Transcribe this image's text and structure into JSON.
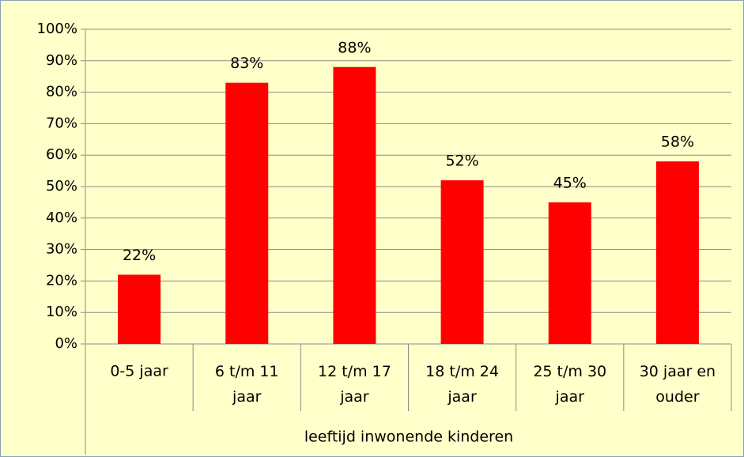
{
  "chart_data": {
    "type": "bar",
    "categories": [
      "0-5 jaar",
      "6 t/m 11 jaar",
      "12 t/m 17 jaar",
      "18 t/m 24 jaar",
      "25 t/m 30 jaar",
      "30 jaar en ouder"
    ],
    "values": [
      22,
      83,
      88,
      52,
      45,
      58
    ],
    "value_labels": [
      "22%",
      "83%",
      "88%",
      "52%",
      "45%",
      "58%"
    ],
    "color": "#ff0000",
    "x_label": "leeftijd inwonende kinderen",
    "ylim": [
      0,
      100
    ],
    "yticks": [
      {
        "value": 0,
        "label": "0%"
      },
      {
        "value": 10,
        "label": "10%"
      },
      {
        "value": 20,
        "label": "20%"
      },
      {
        "value": 30,
        "label": "30%"
      },
      {
        "value": 40,
        "label": "40%"
      },
      {
        "value": 50,
        "label": "50%"
      },
      {
        "value": 60,
        "label": "60%"
      },
      {
        "value": 70,
        "label": "70%"
      },
      {
        "value": 80,
        "label": "80%"
      },
      {
        "value": 90,
        "label": "90%"
      },
      {
        "value": 100,
        "label": "100%"
      }
    ],
    "grid": true
  }
}
